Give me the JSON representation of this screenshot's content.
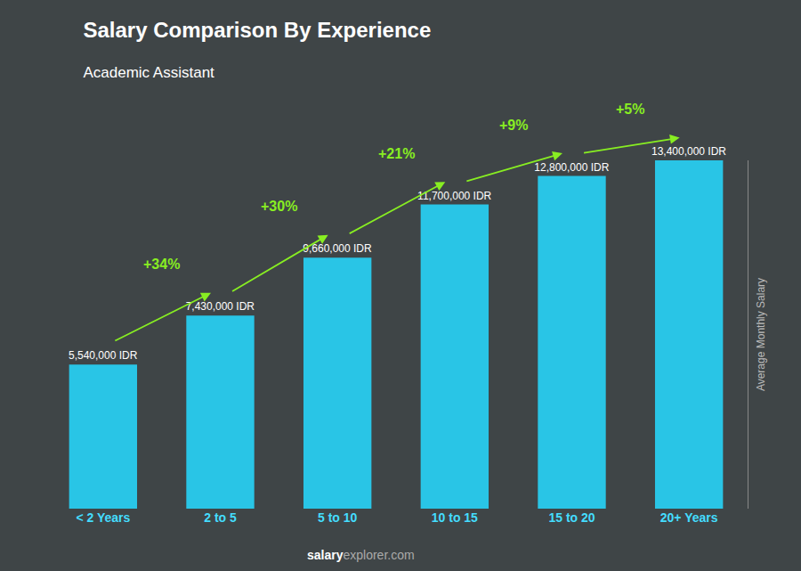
{
  "chart_data": {
    "type": "bar",
    "title": "Salary Comparison By Experience",
    "subtitle": "Academic Assistant",
    "categories": [
      "< 2 Years",
      "2 to 5",
      "5 to 10",
      "10 to 15",
      "15 to 20",
      "20+ Years"
    ],
    "values": [
      5540000,
      7430000,
      9660000,
      11700000,
      12800000,
      13400000
    ],
    "value_labels": [
      "5,540,000 IDR",
      "7,430,000 IDR",
      "9,660,000 IDR",
      "11,700,000 IDR",
      "12,800,000 IDR",
      "13,400,000 IDR"
    ],
    "data_labels": true,
    "color": "#29c5e6",
    "ylabel": "Average Monthly Salary",
    "ylim": [
      0,
      13400000
    ],
    "yticks": [],
    "tick_labels": "x",
    "grid": false,
    "annotations": [
      "+34%",
      "+30%",
      "+21%",
      "+9%",
      "+5%"
    ],
    "footer": [
      "salary",
      "explorer.com"
    ]
  }
}
